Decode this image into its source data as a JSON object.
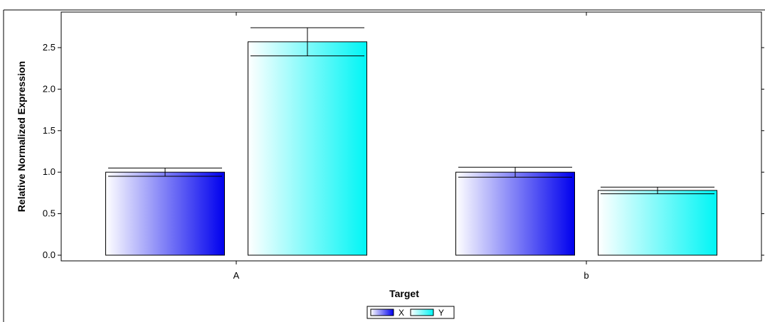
{
  "chart_data": {
    "type": "bar",
    "categories": [
      "A",
      "b"
    ],
    "series": [
      {
        "name": "X",
        "values": [
          1.0,
          1.0
        ],
        "error": [
          0.05,
          0.06
        ],
        "color": "#0000ee"
      },
      {
        "name": "Y",
        "values": [
          2.57,
          0.78
        ],
        "error": [
          0.17,
          0.04
        ],
        "color": "#00f5f5"
      }
    ],
    "xlabel": "Target",
    "ylabel": "Relative Normalized Expression",
    "ylim": [
      0,
      2.8
    ],
    "yticks": [
      "0.0",
      "0.5",
      "1.0",
      "1.5",
      "2.0",
      "2.5"
    ],
    "grid": false,
    "legend": "bottom-center"
  }
}
